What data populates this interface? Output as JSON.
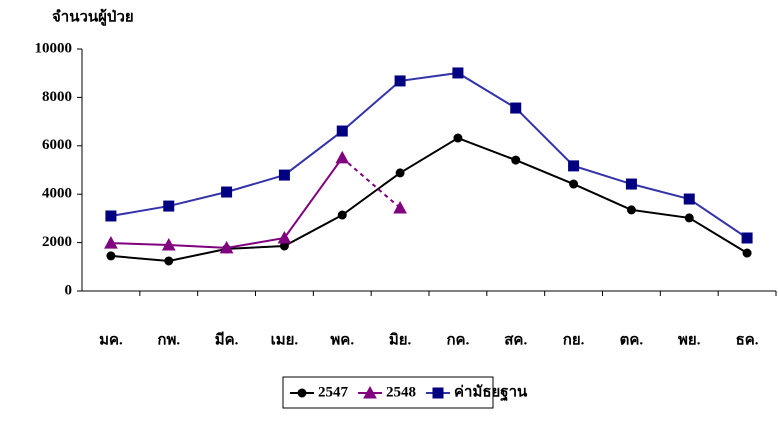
{
  "chart_data": {
    "type": "line",
    "y_axis_label": "จำนวนผู้ป่วย",
    "categories": [
      "มค.",
      "กพ.",
      "มีค.",
      "เมย.",
      "พค.",
      "มิย.",
      "กค.",
      "สค.",
      "กย.",
      "ตค.",
      "พย.",
      "ธค."
    ],
    "series": [
      {
        "name": "2547",
        "color": "#000000",
        "marker": "circle",
        "values": [
          1450,
          1240,
          1740,
          1860,
          3140,
          4880,
          6320,
          5410,
          4420,
          3350,
          3020,
          1570
        ]
      },
      {
        "name": "2548",
        "color": "#800080",
        "marker": "triangle",
        "dashed_from": 4,
        "values": [
          1980,
          1900,
          1780,
          2190,
          5500,
          3430,
          null,
          null,
          null,
          null,
          null,
          null
        ]
      },
      {
        "name": "ค่ามัธยฐาน",
        "color": "#000080",
        "line_color": "#3333aa",
        "marker": "square",
        "values": [
          3100,
          3510,
          4090,
          4790,
          6610,
          8680,
          9010,
          7560,
          5170,
          4420,
          3800,
          2190
        ]
      }
    ],
    "ylim": [
      0,
      10000
    ],
    "yticks": [
      0,
      2000,
      4000,
      6000,
      8000,
      10000
    ],
    "grid": false,
    "legend": "bottom"
  }
}
